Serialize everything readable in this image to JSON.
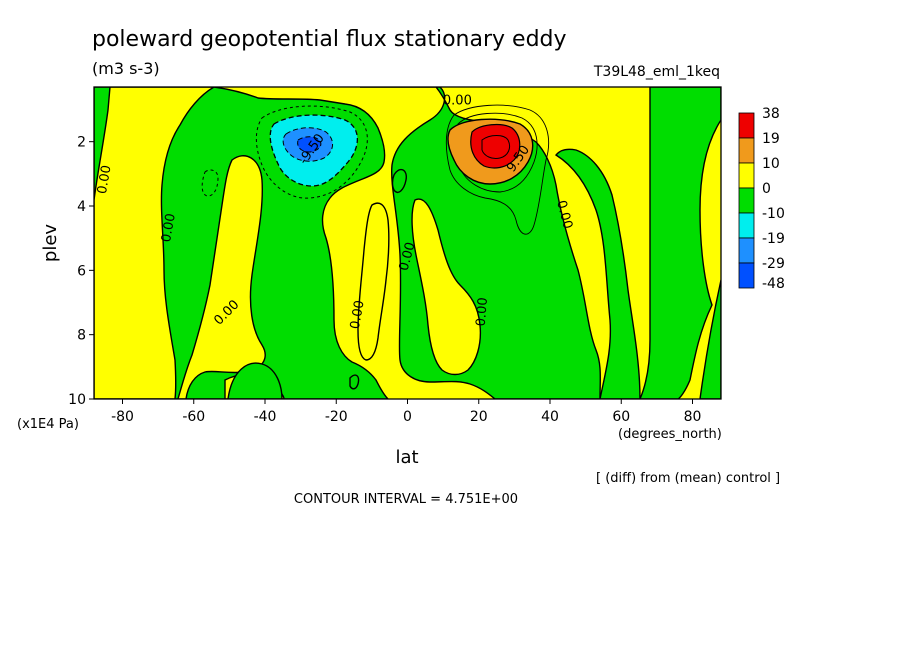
{
  "chart_data": {
    "type": "heatmap",
    "title": "poleward geopotential flux stationary eddy",
    "units": "(m3 s-3)",
    "run_label": "T39L48_eml_1keq",
    "xlabel": "lat",
    "x_units": "(degrees_north)",
    "ylabel": "plev",
    "y_units": "(x1E4 Pa)",
    "diff_note": "[ (diff) from (mean) control ]",
    "contour_interval_text": "CONTOUR INTERVAL = 4.751E+00",
    "x_range": [
      -88,
      88
    ],
    "y_range": [
      0.3,
      10
    ],
    "y_inverted": true,
    "x_ticks": [
      -80,
      -60,
      -40,
      -20,
      0,
      20,
      40,
      60,
      80
    ],
    "y_ticks": [
      2,
      4,
      6,
      8,
      10
    ],
    "colorbar": {
      "levels": [
        "38",
        "19",
        "10",
        "0",
        "-10",
        "-19",
        "-29",
        "-48"
      ],
      "colors": [
        "#ee0000",
        "#f09a1c",
        "#ffff00",
        "#00dd00",
        "#00eeee",
        "#1e90ff",
        "#0050ff"
      ]
    },
    "contour_labels": [
      {
        "text": "0.00",
        "lat": 14,
        "plev": 0.85,
        "rot": 0
      },
      {
        "text": "-9.50",
        "lat": -26,
        "plev": 2.3,
        "rot": -55
      },
      {
        "text": "9.50",
        "lat": 32,
        "plev": 2.6,
        "rot": -55
      },
      {
        "text": "0.00",
        "lat": -84,
        "plev": 3.2,
        "rot": -80
      },
      {
        "text": "0.00",
        "lat": -66,
        "plev": 4.7,
        "rot": -80
      },
      {
        "text": "0.00",
        "lat": 1,
        "plev": 5.6,
        "rot": -75
      },
      {
        "text": "0.00",
        "lat": 43,
        "plev": 4.3,
        "rot": 75
      },
      {
        "text": "0.00",
        "lat": -50,
        "plev": 7.4,
        "rot": -45
      },
      {
        "text": "0.00",
        "lat": -13,
        "plev": 7.4,
        "rot": -80
      },
      {
        "text": "0.00",
        "lat": 22,
        "plev": 7.3,
        "rot": -85
      }
    ]
  }
}
